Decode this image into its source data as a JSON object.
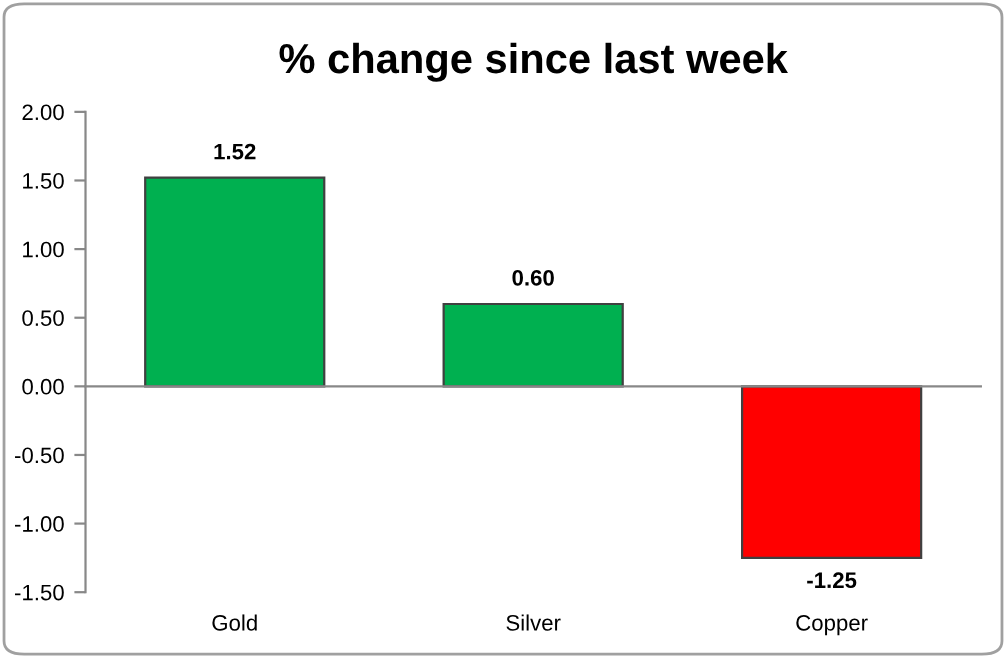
{
  "chart_data": {
    "type": "bar",
    "title": "% change since last week",
    "categories": [
      "Gold",
      "Silver",
      "Copper"
    ],
    "values": [
      1.52,
      0.6,
      -1.25
    ],
    "colors": [
      "#00b050",
      "#00b050",
      "#ff0000"
    ],
    "ylim": [
      -1.5,
      2.0
    ],
    "yticks": [
      {
        "value": -1.5,
        "label": "-1.50"
      },
      {
        "value": -1.0,
        "label": "-1.00"
      },
      {
        "value": -0.5,
        "label": "-0.50"
      },
      {
        "value": 0,
        "label": "0.00"
      },
      {
        "value": 0.5,
        "label": "0.50"
      },
      {
        "value": 1.0,
        "label": "1.00"
      },
      {
        "value": 1.5,
        "label": "1.50"
      },
      {
        "value": 2.0,
        "label": "2.00"
      }
    ],
    "value_labels": [
      "1.52",
      "0.60",
      "-1.25"
    ]
  }
}
